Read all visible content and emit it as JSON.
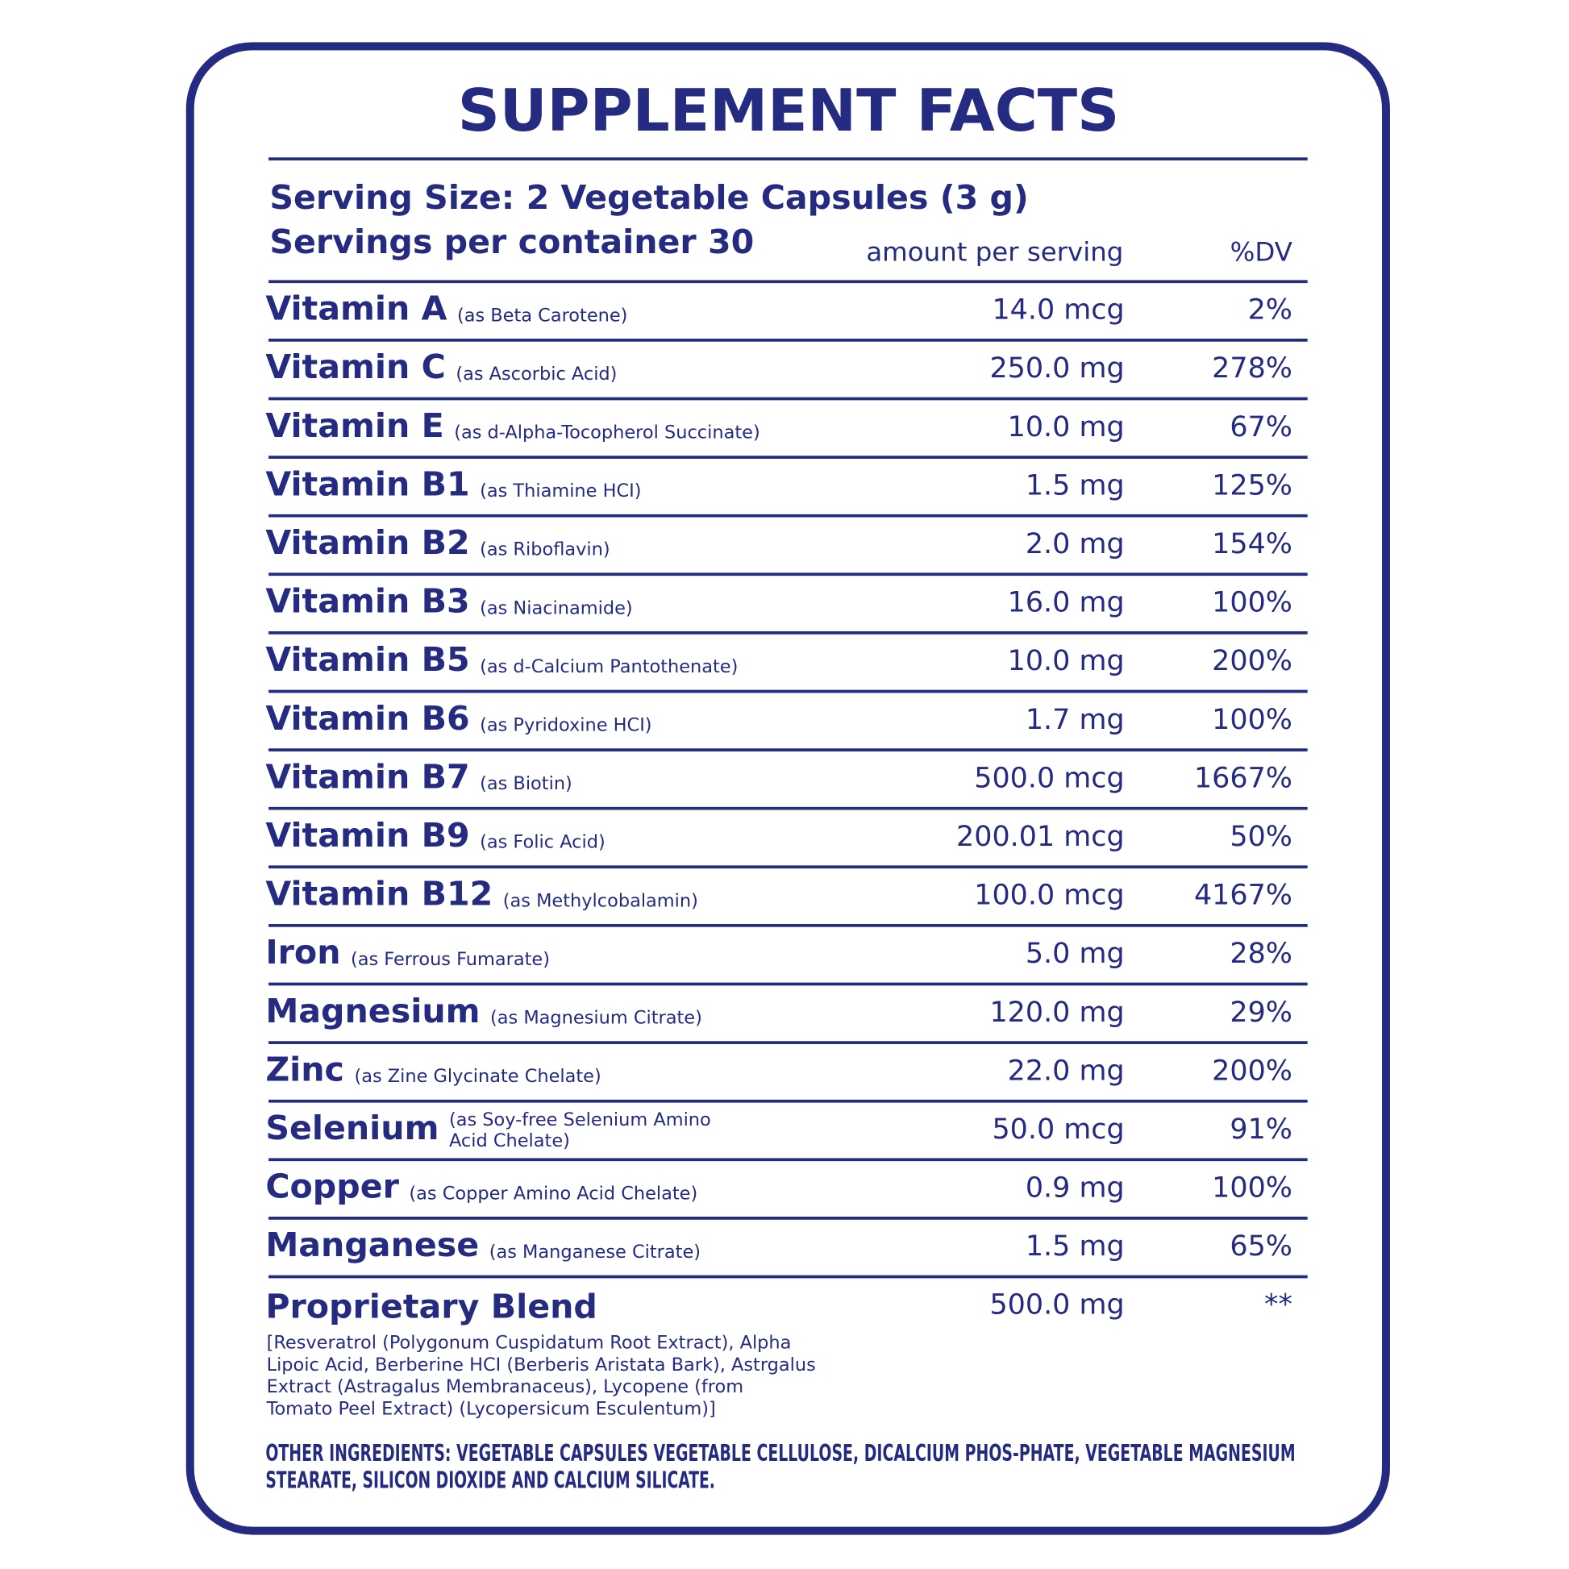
{
  "header": {
    "title": "SUPPLEMENT FACTS",
    "serving_size": "Serving Size: 2 Vegetable Capsules (3 g)",
    "servings_per_container": "Servings per container 30",
    "amount_heading": "amount per serving",
    "dv_heading": "%DV"
  },
  "rows": [
    {
      "name": "Vitamin A",
      "source": "(as Beta Carotene)",
      "amount": "14.0 mcg",
      "dv": "2%"
    },
    {
      "name": "Vitamin C",
      "source": "(as Ascorbic Acid)",
      "amount": "250.0 mg",
      "dv": "278%"
    },
    {
      "name": "Vitamin E",
      "source": "(as d-Alpha-Tocopherol Succinate)",
      "amount": "10.0 mg",
      "dv": "67%"
    },
    {
      "name": "Vitamin B1",
      "source": "(as Thiamine HCI)",
      "amount": "1.5 mg",
      "dv": "125%"
    },
    {
      "name": "Vitamin B2",
      "source": "(as Riboflavin)",
      "amount": "2.0 mg",
      "dv": "154%"
    },
    {
      "name": "Vitamin B3",
      "source": "(as Niacinamide)",
      "amount": "16.0 mg",
      "dv": "100%"
    },
    {
      "name": "Vitamin B5",
      "source": "(as d-Calcium Pantothenate)",
      "amount": "10.0 mg",
      "dv": "200%"
    },
    {
      "name": "Vitamin B6",
      "source": "(as Pyridoxine HCI)",
      "amount": "1.7 mg",
      "dv": "100%"
    },
    {
      "name": "Vitamin B7",
      "source": "(as Biotin)",
      "amount": "500.0 mcg",
      "dv": "1667%"
    },
    {
      "name": "Vitamin B9",
      "source": "(as Folic Acid)",
      "amount": "200.01 mcg",
      "dv": "50%"
    },
    {
      "name": "Vitamin B12",
      "source": "(as Methylcobalamin)",
      "amount": "100.0 mcg",
      "dv": "4167%"
    },
    {
      "name": "Iron",
      "source": "(as Ferrous Fumarate)",
      "amount": "5.0 mg",
      "dv": "28%"
    },
    {
      "name": "Magnesium",
      "source": "(as Magnesium Citrate)",
      "amount": "120.0 mg",
      "dv": "29%"
    },
    {
      "name": "Zinc",
      "source": "(as Zine Glycinate Chelate)",
      "amount": "22.0 mg",
      "dv": "200%"
    },
    {
      "name": "Selenium",
      "source": [
        "(as Soy-free Selenium Amino",
        "Acid Chelate)"
      ],
      "amount": "50.0 mcg",
      "dv": "91%"
    },
    {
      "name": "Copper",
      "source": "(as Copper Amino Acid Chelate)",
      "amount": "0.9 mg",
      "dv": "100%"
    },
    {
      "name": "Manganese",
      "source": "(as Manganese Citrate)",
      "amount": "1.5 mg",
      "dv": "65%"
    }
  ],
  "blend": {
    "name": "Proprietary Blend",
    "amount": "500.0 mg",
    "dv": "**",
    "description": [
      "[Resveratrol (Polygonum Cuspidatum Root Extract), Alpha",
      "Lipoic Acid, Berberine HCI (Berberis Aristata Bark), Astrgalus",
      "Extract (Astragalus Membranaceus), Lycopene (from",
      "Tomato Peel Extract) (Lycopersicum Esculentum)]"
    ]
  },
  "other_ingredients": [
    "OTHER INGREDIENTS: VEGETABLE CAPSULES VEGETABLE CELLULOSE, DICALCIUM PHOS-PHATE, VEGETABLE MAGNESIUM",
    "STEARATE, SILICON DIOXIDE AND CALCIUM SILICATE."
  ]
}
